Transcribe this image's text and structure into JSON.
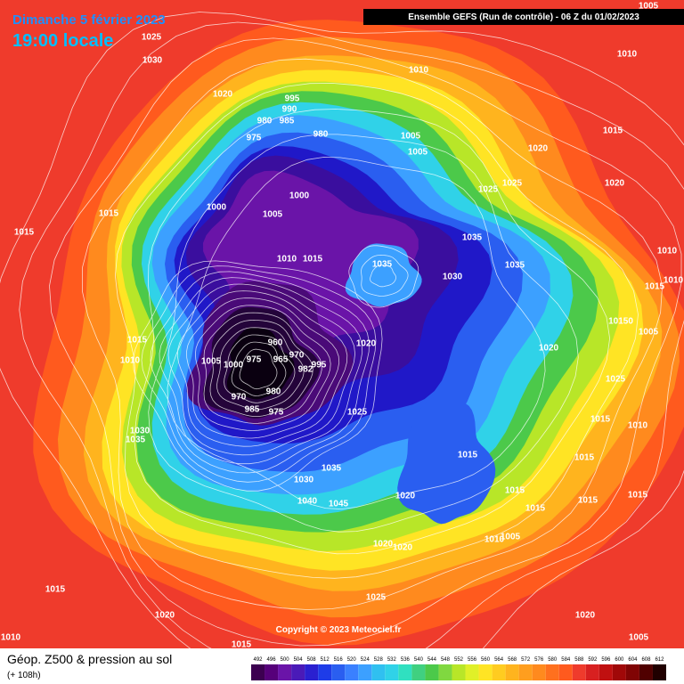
{
  "header": {
    "date": "Dimanche 5 février 2023",
    "time": "19:00 locale",
    "run": "Ensemble GEFS  (Run de contrôle)  -  06 Z du 01/02/2023"
  },
  "footer": {
    "copyright": "Copyright © 2023 Meteociel.fr",
    "product": "Géop. Z500 & pression au sol",
    "lead": "(+ 108h)"
  },
  "colorbar": {
    "labels": [
      "492",
      "496",
      "500",
      "504",
      "508",
      "512",
      "516",
      "520",
      "524",
      "528",
      "532",
      "536",
      "540",
      "544",
      "548",
      "552",
      "556",
      "560",
      "564",
      "568",
      "572",
      "576",
      "580",
      "584",
      "588",
      "592",
      "596",
      "600",
      "604",
      "608",
      "612"
    ]
  },
  "isobars": [
    "1025",
    "1030",
    "1020",
    "995",
    "990",
    "985",
    "980",
    "975",
    "980",
    "1015",
    "1015",
    "1000",
    "1005",
    "1000",
    "1010",
    "1015",
    "1035",
    "1030",
    "1035",
    "1035",
    "1025",
    "1025",
    "1005",
    "1005",
    "1010",
    "1020",
    "1015",
    "1020",
    "1010",
    "1010",
    "1015",
    "1010",
    "10150",
    "1005",
    "1020",
    "1025",
    "1015",
    "1010",
    "1015",
    "1015",
    "1015",
    "1015",
    "1015",
    "1005",
    "1010",
    "1015",
    "1020",
    "1020",
    "1020",
    "1025",
    "1025",
    "1020",
    "960",
    "965",
    "970",
    "975",
    "980",
    "985",
    "975",
    "970",
    "982",
    "995",
    "1005",
    "1000",
    "1015",
    "1010",
    "1030",
    "1035",
    "1035",
    "1030",
    "1040",
    "1045",
    "1015",
    "1020",
    "1010",
    "1015",
    "1020",
    "1005",
    "1005"
  ]
}
